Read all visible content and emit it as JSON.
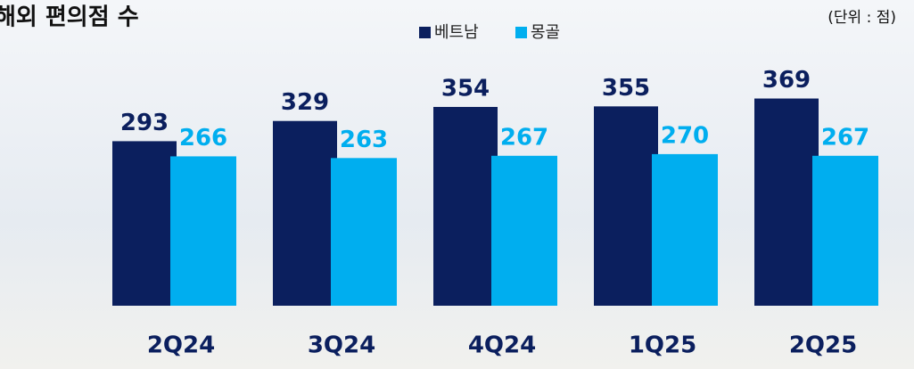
{
  "chart_data": {
    "type": "bar",
    "title": "해외 편의점 수",
    "unit_note": "(단위 : 점)",
    "categories": [
      "2Q24",
      "3Q24",
      "4Q24",
      "1Q25",
      "2Q25"
    ],
    "series": [
      {
        "name": "베트남",
        "color": "#0b1f5e",
        "values": [
          293,
          329,
          354,
          355,
          369
        ]
      },
      {
        "name": "몽골",
        "color": "#00aeef",
        "values": [
          266,
          263,
          267,
          270,
          267
        ]
      }
    ]
  }
}
